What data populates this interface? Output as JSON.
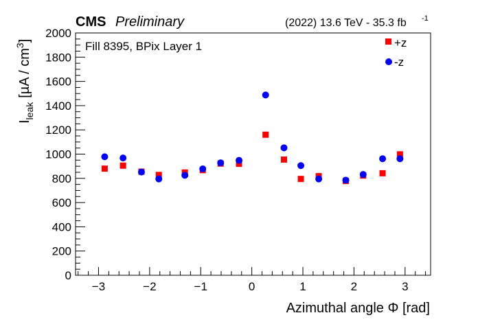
{
  "header": {
    "experiment": "CMS",
    "status": "Preliminary",
    "lumi_text": "(2022) 13.6 TeV - 35.3 fb",
    "lumi_exponent": "-1"
  },
  "chart_data": {
    "type": "scatter",
    "annotation": "Fill 8395, BPix Layer 1",
    "xlabel": "Azimuthal angle   Φ [rad]",
    "ylabel_main": "I",
    "ylabel_sub": "leak",
    "ylabel_unit": "[µA / cm",
    "ylabel_unit_sup": "3",
    "ylabel_unit_close": "]",
    "xlim": [
      -3.45,
      3.5
    ],
    "ylim": [
      0,
      2000
    ],
    "x_ticks": [
      -3,
      -2,
      -1,
      0,
      1,
      2,
      3
    ],
    "x_tick_labels": [
      "−3",
      "−2",
      "−1",
      "0",
      "1",
      "2",
      "3"
    ],
    "y_ticks": [
      0,
      200,
      400,
      600,
      800,
      1000,
      1200,
      1400,
      1600,
      1800,
      2000
    ],
    "y_tick_labels": [
      "0",
      "200",
      "400",
      "600",
      "800",
      "1000",
      "1200",
      "1400",
      "1600",
      "1800",
      "2000"
    ],
    "legend_placement": "top-right",
    "series": [
      {
        "name": "+z",
        "marker": "square",
        "color": "#ff0000",
        "x": [
          -2.88,
          -2.52,
          -2.16,
          -1.82,
          -1.31,
          -0.96,
          -0.61,
          -0.25,
          0.27,
          0.63,
          0.96,
          1.31,
          1.84,
          2.18,
          2.56,
          2.9
        ],
        "y": [
          880,
          905,
          855,
          828,
          848,
          868,
          922,
          920,
          1160,
          955,
          795,
          818,
          778,
          823,
          842,
          998
        ]
      },
      {
        "name": "-z",
        "marker": "circle",
        "color": "#0000ff",
        "x": [
          -2.88,
          -2.52,
          -2.16,
          -1.82,
          -1.31,
          -0.96,
          -0.61,
          -0.25,
          0.27,
          0.63,
          0.96,
          1.31,
          1.84,
          2.18,
          2.56,
          2.9
        ],
        "y": [
          978,
          968,
          852,
          795,
          825,
          878,
          928,
          948,
          1488,
          1052,
          905,
          795,
          785,
          832,
          962,
          962
        ]
      }
    ]
  }
}
